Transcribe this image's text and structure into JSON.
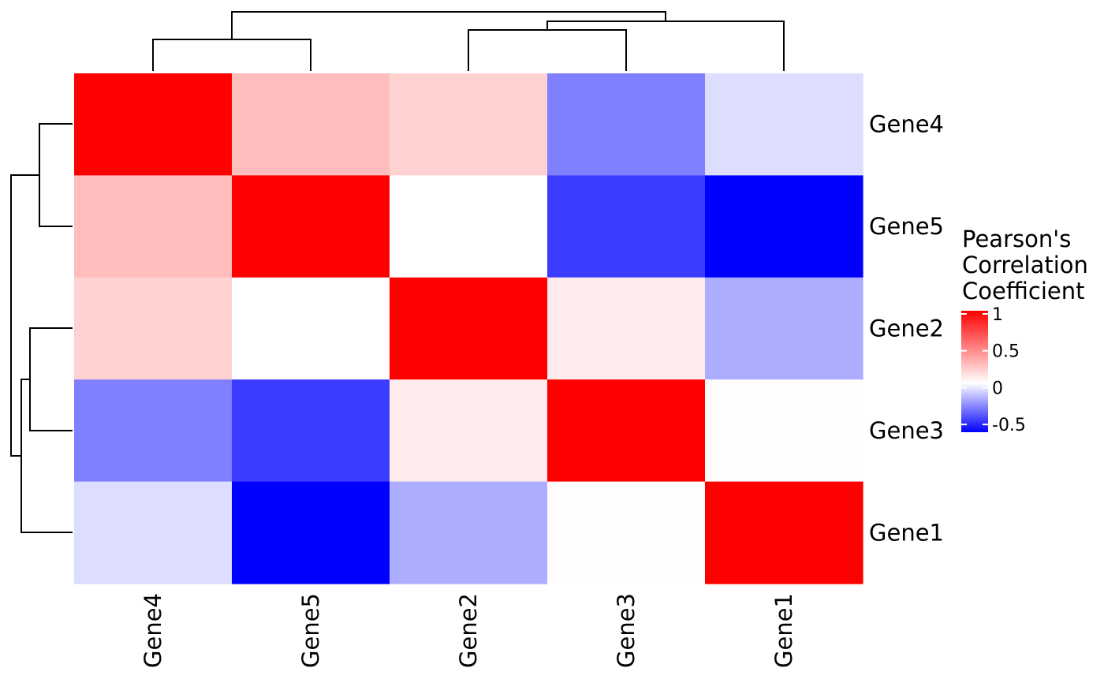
{
  "chart_data": {
    "type": "heatmap",
    "title": "",
    "xlabel": "",
    "ylabel": "",
    "columns": [
      "Gene4",
      "Gene5",
      "Gene2",
      "Gene3",
      "Gene1"
    ],
    "rows": [
      "Gene4",
      "Gene5",
      "Gene2",
      "Gene3",
      "Gene1"
    ],
    "values": [
      [
        1.0,
        0.26,
        0.18,
        -0.34,
        -0.09
      ],
      [
        0.26,
        1.0,
        0.0,
        -0.52,
        -0.68
      ],
      [
        0.18,
        0.0,
        1.0,
        0.08,
        -0.22
      ],
      [
        -0.34,
        -0.52,
        0.08,
        1.0,
        0.01
      ],
      [
        -0.09,
        -0.68,
        -0.22,
        0.01,
        1.0
      ]
    ],
    "color_scale": {
      "low": {
        "value": -0.68,
        "color": "#0000ff"
      },
      "mid": {
        "value": 0,
        "color": "#ffffff"
      },
      "high": {
        "value": 1,
        "color": "#ff0000"
      }
    },
    "legend": {
      "title": [
        "Pearson's",
        "Correlation",
        "Coefficient"
      ],
      "ticks": [
        {
          "value": 1,
          "label": "1"
        },
        {
          "value": 0.5,
          "label": "0.5"
        },
        {
          "value": 0,
          "label": "0"
        },
        {
          "value": -0.5,
          "label": "-0.5"
        }
      ],
      "range": [
        -0.68,
        1
      ],
      "placement": "right"
    },
    "row_dendrogram": true,
    "column_dendrogram": true
  }
}
